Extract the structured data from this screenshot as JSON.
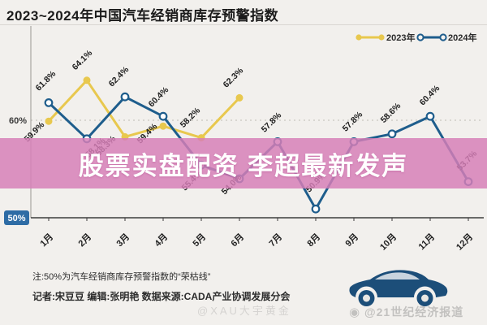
{
  "header": {
    "title": "2023~2024年中国汽车经销商库存预警指数"
  },
  "overlay": {
    "banner_text": "股票实盘配资 李超最新发声"
  },
  "chart_data": {
    "type": "line",
    "title": "2023~2024年中国汽车经销商库存预警指数",
    "categories": [
      "1月",
      "2月",
      "3月",
      "4月",
      "5月",
      "6月",
      "7月",
      "8月",
      "9月",
      "10月",
      "11月",
      "12月"
    ],
    "series": [
      {
        "name": "2023年",
        "color": "#e8c84e",
        "marker": "filled",
        "values": [
          59.9,
          64.1,
          58.3,
          59.4,
          58.2,
          62.3,
          null,
          null,
          null,
          null,
          null,
          null
        ]
      },
      {
        "name": "2024年",
        "color": "#1e5d8c",
        "marker": "open",
        "values": [
          61.8,
          58.1,
          62.4,
          60.4,
          55.4,
          54.0,
          57.8,
          50.9,
          57.8,
          58.6,
          60.4,
          53.7
        ]
      }
    ],
    "xlabel": "",
    "ylabel": "",
    "ylim": [
      49,
      66
    ],
    "grid": "dashed line at 60% only",
    "legend_position": "top-right",
    "y_ticks": [
      {
        "label": "60%",
        "value": 60,
        "style": "dashed-gridline"
      },
      {
        "label": "50%",
        "value": 50,
        "style": "blue-badge-threshold"
      }
    ]
  },
  "notes": {
    "line1": "注:50%为汽车经销商库存预警指数的“荣枯线”",
    "line2": "记者:宋豆豆  编辑:张明艳  数据来源:CADA产业协调发展分会"
  },
  "watermarks": {
    "center": "@XAU大宇黄金",
    "right": "@21世纪经济报道"
  },
  "colors": {
    "series_2023": "#e8c84e",
    "series_2024": "#1e5d8c",
    "banner_bg": "#d77eb8",
    "threshold_badge": "#2e6ca5",
    "background": "#f2f0ed",
    "car": "#1c4e79"
  }
}
